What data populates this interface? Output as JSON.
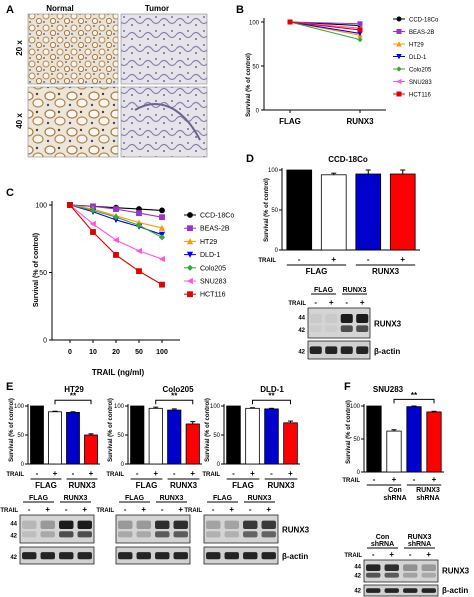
{
  "panel_letters": {
    "a": "A",
    "b": "B",
    "c": "C",
    "d": "D",
    "e": "E",
    "f": "F"
  },
  "panel_a": {
    "col_normal": "Normal",
    "col_tumor": "Tumor",
    "row_20x": "20 x",
    "row_40x": "40 x"
  },
  "labels": {
    "y_survival": "Survival (% of control)",
    "trail": "TRAIL",
    "flag": "FLAG",
    "runx3": "RUNX3",
    "con_shrna_1": "Con",
    "con_shrna_2": "shRNA",
    "runx3_shrna_1": "RUNX3",
    "runx3_shrna_2": "shRNA",
    "flagrunx3": "FLAGRUNX3",
    "beta_actin": "β-actin",
    "minus": "-",
    "plus": "+",
    "sig": "**",
    "mw_44": "44",
    "mw_42": "42",
    "c_xlabel": "TRAIL (ng/ml)",
    "d_title": "CCD-18Co",
    "e_ht29": "HT29",
    "e_colo205": "Colo205",
    "e_dld1": "DLD-1",
    "f_snu283": "SNU283"
  },
  "chart_data": [
    {
      "id": "B",
      "type": "line",
      "categories": [
        "FLAG",
        "RUNX3"
      ],
      "ylim": [
        0,
        100
      ],
      "yticks": [
        "0",
        "50",
        "100"
      ],
      "legend_placement": "right",
      "series": [
        {
          "name": "CCD-18Co",
          "color": "#000000",
          "marker": "circle",
          "values": [
            100,
            96
          ]
        },
        {
          "name": "BEAS-2B",
          "color": "#9933cc",
          "marker": "square",
          "values": [
            100,
            98
          ]
        },
        {
          "name": "HT29",
          "color": "#ff9900",
          "marker": "triangle",
          "values": [
            100,
            85
          ]
        },
        {
          "name": "DLD-1",
          "color": "#0000ff",
          "marker": "triangle-down",
          "values": [
            100,
            87
          ]
        },
        {
          "name": "Colo205",
          "color": "#33aa33",
          "marker": "diamond",
          "values": [
            100,
            80
          ]
        },
        {
          "name": "SNU283",
          "color": "#ff55dd",
          "marker": "triangle-left",
          "values": [
            100,
            93
          ]
        },
        {
          "name": "HCT116",
          "color": "#e00000",
          "marker": "square",
          "values": [
            100,
            91
          ]
        }
      ]
    },
    {
      "id": "C",
      "type": "line",
      "categories": [
        "0",
        "10",
        "20",
        "50",
        "100"
      ],
      "ylim": [
        0,
        100
      ],
      "yticks": [
        "0",
        "50",
        "100"
      ],
      "xlabel": "TRAIL (ng/ml)",
      "legend_placement": "right",
      "series": [
        {
          "name": "CCD-18Co",
          "color": "#000000",
          "marker": "circle",
          "values": [
            100,
            99,
            98,
            97,
            96
          ]
        },
        {
          "name": "BEAS-2B",
          "color": "#9933cc",
          "marker": "square",
          "values": [
            100,
            99,
            97,
            94,
            91
          ]
        },
        {
          "name": "HT29",
          "color": "#ff9900",
          "marker": "triangle",
          "values": [
            100,
            97,
            92,
            87,
            83
          ]
        },
        {
          "name": "DLD-1",
          "color": "#0000ff",
          "marker": "triangle-down",
          "values": [
            100,
            95,
            89,
            84,
            78
          ]
        },
        {
          "name": "Colo205",
          "color": "#33aa33",
          "marker": "diamond",
          "values": [
            100,
            96,
            91,
            85,
            76
          ]
        },
        {
          "name": "SNU283",
          "color": "#ff55dd",
          "marker": "triangle-left",
          "values": [
            100,
            86,
            74,
            66,
            60
          ]
        },
        {
          "name": "HCT116",
          "color": "#e00000",
          "marker": "square",
          "values": [
            100,
            80,
            63,
            51,
            41
          ]
        }
      ]
    },
    {
      "id": "D",
      "type": "bar",
      "title": "CCD-18Co",
      "ylim": [
        0,
        100
      ],
      "yticks": [
        "0",
        "50",
        "100"
      ],
      "bars": [
        {
          "group": "FLAG",
          "trail": "-",
          "value": 100,
          "err": 0,
          "fill": "#000000"
        },
        {
          "group": "FLAG",
          "trail": "+",
          "value": 94,
          "err": 2,
          "fill": "#ffffff"
        },
        {
          "group": "RUNX3",
          "trail": "-",
          "value": 95,
          "err": 5,
          "fill": "#0000cc"
        },
        {
          "group": "RUNX3",
          "trail": "+",
          "value": 95,
          "err": 5,
          "fill": "#ff0000"
        }
      ]
    },
    {
      "id": "E-HT29",
      "type": "bar",
      "title": "HT29",
      "ylim": [
        0,
        100
      ],
      "yticks": [
        "0",
        "50",
        "100"
      ],
      "bars": [
        {
          "group": "FLAG",
          "trail": "-",
          "value": 100,
          "err": 0,
          "fill": "#000000"
        },
        {
          "group": "FLAG",
          "trail": "+",
          "value": 90,
          "err": 1,
          "fill": "#ffffff"
        },
        {
          "group": "RUNX3",
          "trail": "-",
          "value": 89,
          "err": 1,
          "fill": "#0000cc"
        },
        {
          "group": "RUNX3",
          "trail": "+",
          "value": 50,
          "err": 2,
          "fill": "#ff0000"
        }
      ]
    },
    {
      "id": "E-Colo205",
      "type": "bar",
      "title": "Colo205",
      "ylim": [
        0,
        100
      ],
      "yticks": [
        "0",
        "50",
        "100"
      ],
      "bars": [
        {
          "group": "FLAG",
          "trail": "-",
          "value": 100,
          "err": 0,
          "fill": "#000000"
        },
        {
          "group": "FLAG",
          "trail": "+",
          "value": 96,
          "err": 2,
          "fill": "#ffffff"
        },
        {
          "group": "RUNX3",
          "trail": "-",
          "value": 93,
          "err": 2,
          "fill": "#0000cc"
        },
        {
          "group": "RUNX3",
          "trail": "+",
          "value": 69,
          "err": 4,
          "fill": "#ff0000"
        }
      ]
    },
    {
      "id": "E-DLD-1",
      "type": "bar",
      "title": "DLD-1",
      "ylim": [
        0,
        100
      ],
      "yticks": [
        "0",
        "50",
        "100"
      ],
      "bars": [
        {
          "group": "FLAG",
          "trail": "-",
          "value": 100,
          "err": 0,
          "fill": "#000000"
        },
        {
          "group": "FLAG",
          "trail": "+",
          "value": 96,
          "err": 1,
          "fill": "#ffffff"
        },
        {
          "group": "RUNX3",
          "trail": "-",
          "value": 95,
          "err": 1,
          "fill": "#0000cc"
        },
        {
          "group": "RUNX3",
          "trail": "+",
          "value": 71,
          "err": 3,
          "fill": "#ff0000"
        }
      ]
    },
    {
      "id": "F",
      "type": "bar",
      "title": "SNU283",
      "ylim": [
        0,
        100
      ],
      "yticks": [
        "0",
        "50",
        "100"
      ],
      "bars": [
        {
          "group": "Con shRNA",
          "trail": "-",
          "value": 100,
          "err": 0,
          "fill": "#000000"
        },
        {
          "group": "Con shRNA",
          "trail": "+",
          "value": 62,
          "err": 2,
          "fill": "#ffffff"
        },
        {
          "group": "RUNX3 shRNA",
          "trail": "-",
          "value": 99,
          "err": 1,
          "fill": "#0000cc"
        },
        {
          "group": "RUNX3 shRNA",
          "trail": "+",
          "value": 91,
          "err": 1,
          "fill": "#ff0000"
        }
      ]
    }
  ]
}
